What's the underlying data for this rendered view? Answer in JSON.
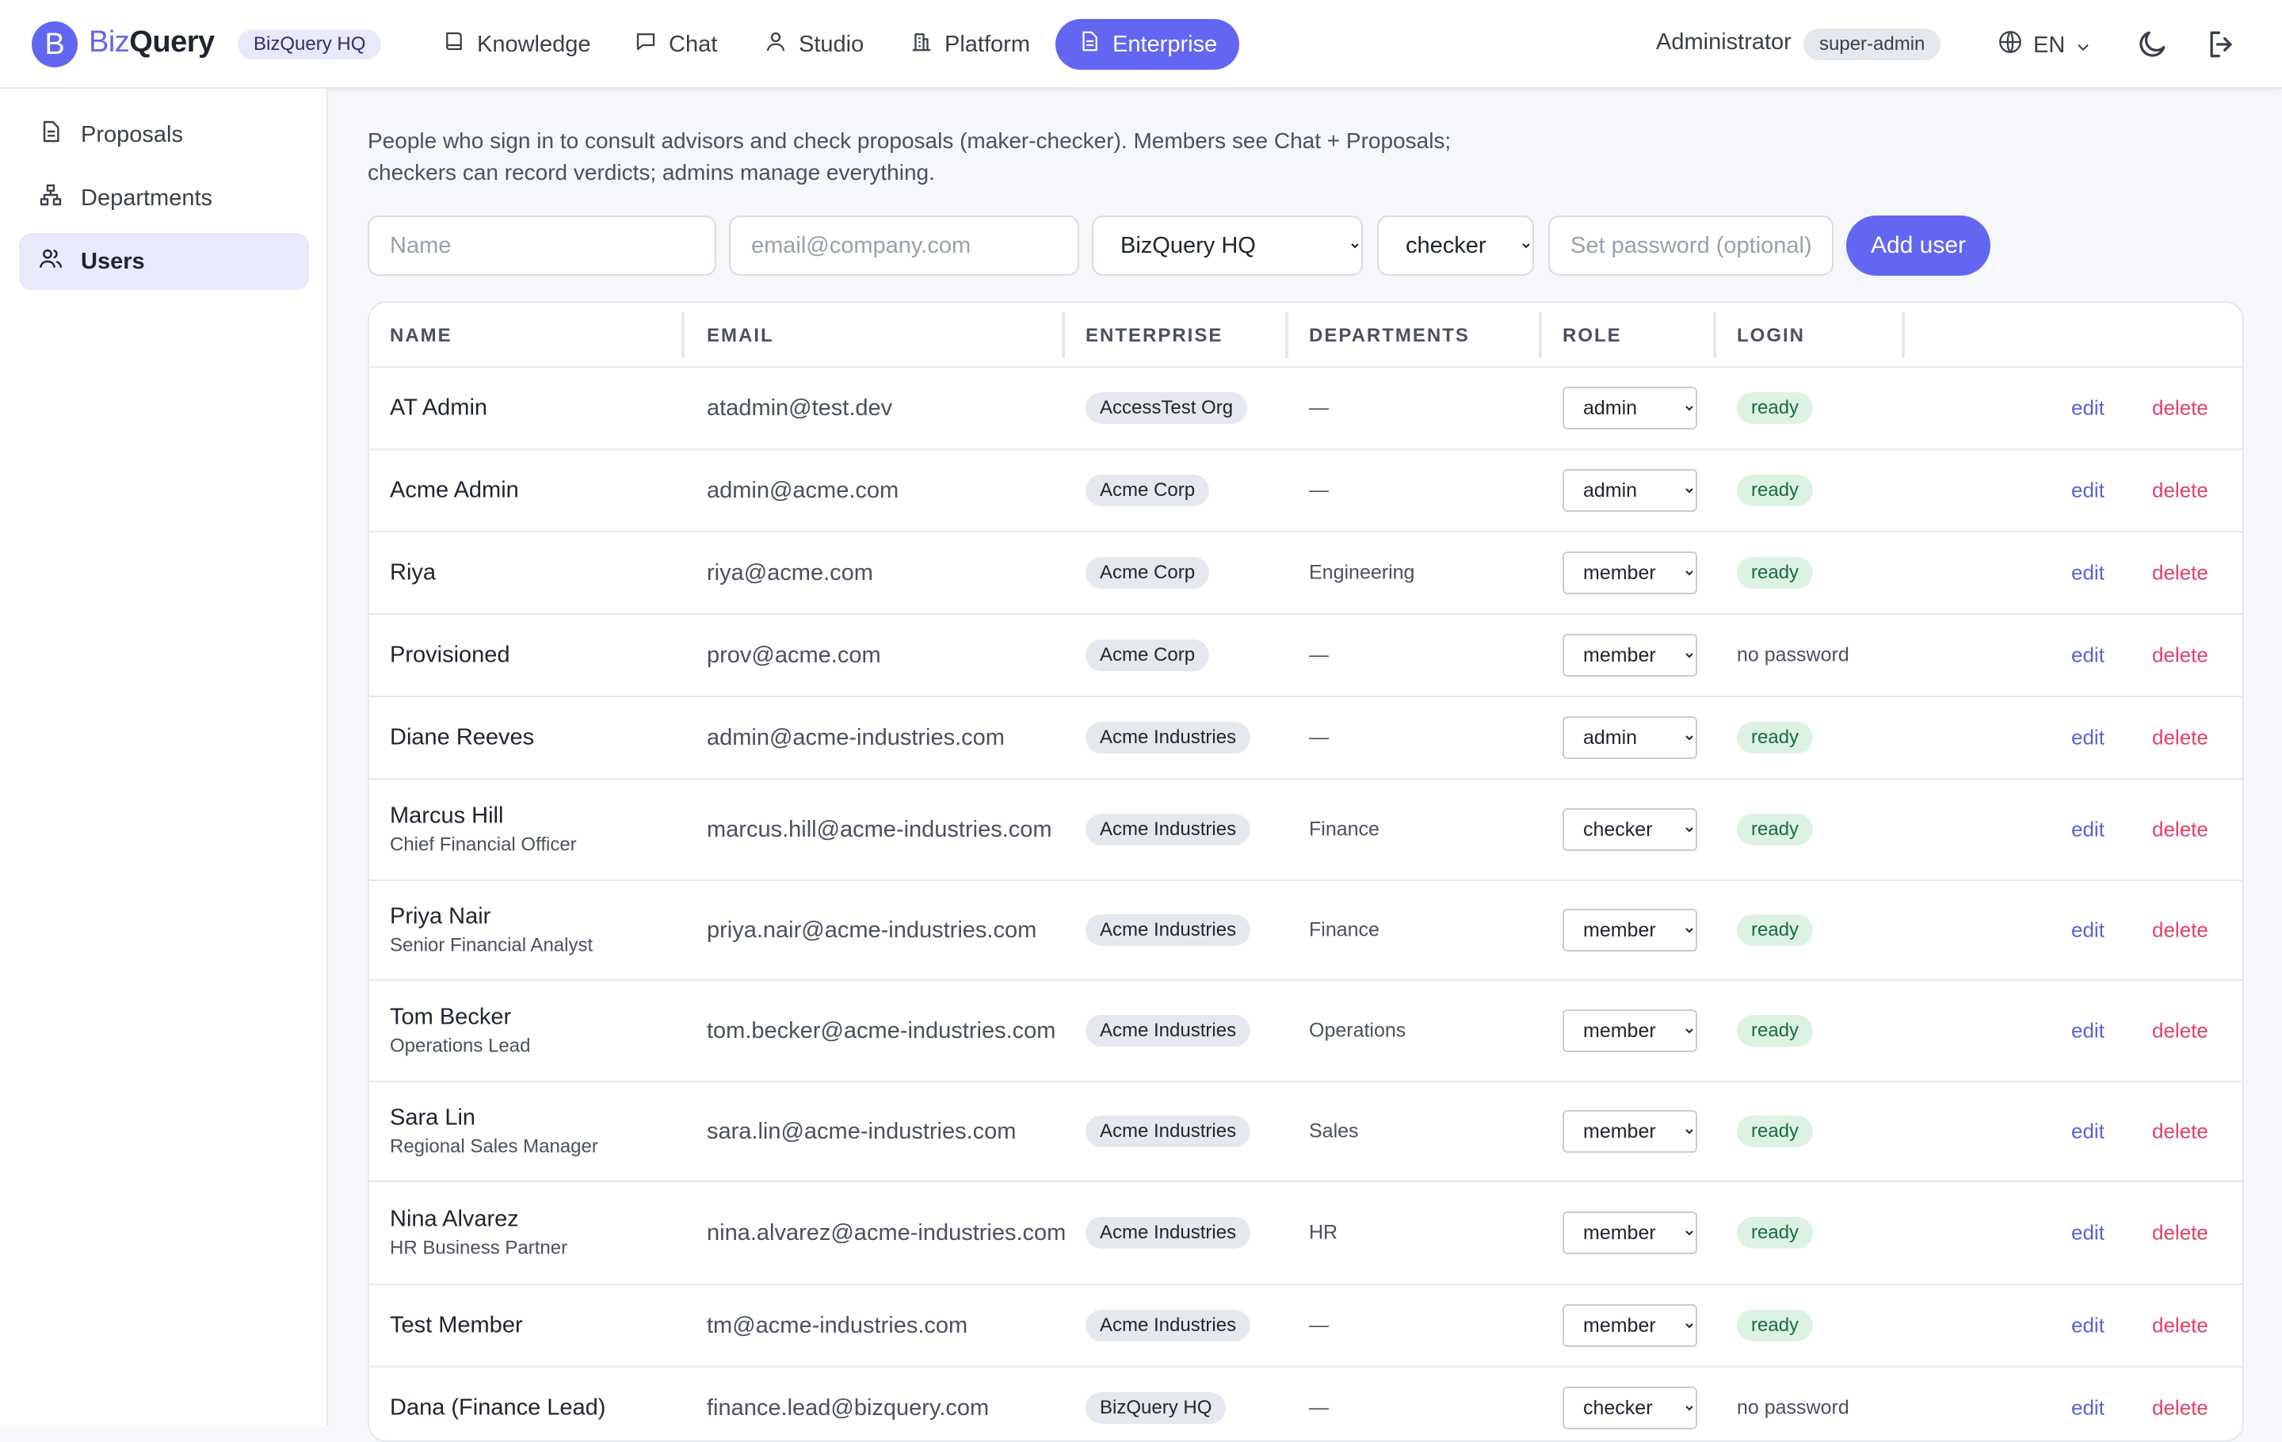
{
  "app": {
    "logo_letter": "B",
    "brand_part1": "Biz",
    "brand_part2": "Query",
    "org_chip": "BizQuery HQ"
  },
  "nav": [
    {
      "label": "Knowledge",
      "icon": "book-icon"
    },
    {
      "label": "Chat",
      "icon": "chat-icon"
    },
    {
      "label": "Studio",
      "icon": "person-icon"
    },
    {
      "label": "Platform",
      "icon": "building-icon"
    },
    {
      "label": "Enterprise",
      "icon": "document-icon",
      "active": true
    }
  ],
  "user": {
    "name": "Administrator",
    "role": "super-admin",
    "language": "EN"
  },
  "sidebar": {
    "items": [
      {
        "label": "Proposals",
        "icon": "document-icon"
      },
      {
        "label": "Departments",
        "icon": "org-chart-icon"
      },
      {
        "label": "Users",
        "icon": "users-icon",
        "active": true
      }
    ]
  },
  "intro": {
    "line1": "People who sign in to consult advisors and check proposals (maker-checker). Members see Chat + Proposals;",
    "line2": "checkers can record verdicts; admins manage everything."
  },
  "form": {
    "name_placeholder": "Name",
    "email_placeholder": "email@company.com",
    "enterprise_value": "BizQuery HQ",
    "role_value": "checker",
    "password_placeholder": "Set password (optional)",
    "add_label": "Add user"
  },
  "table": {
    "headers": [
      "NAME",
      "EMAIL",
      "ENTERPRISE",
      "DEPARTMENTS",
      "ROLE",
      "LOGIN"
    ],
    "edit_label": "edit",
    "delete_label": "delete",
    "rows": [
      {
        "name": "AT Admin",
        "title": "",
        "email": "atadmin@test.dev",
        "enterprise": "AccessTest Org",
        "departments": "—",
        "role": "admin",
        "login": "ready"
      },
      {
        "name": "Acme Admin",
        "title": "",
        "email": "admin@acme.com",
        "enterprise": "Acme Corp",
        "departments": "—",
        "role": "admin",
        "login": "ready"
      },
      {
        "name": "Riya",
        "title": "",
        "email": "riya@acme.com",
        "enterprise": "Acme Corp",
        "departments": "Engineering",
        "role": "member",
        "login": "ready"
      },
      {
        "name": "Provisioned",
        "title": "",
        "email": "prov@acme.com",
        "enterprise": "Acme Corp",
        "departments": "—",
        "role": "member",
        "login": "no password"
      },
      {
        "name": "Diane Reeves",
        "title": "",
        "email": "admin@acme-industries.com",
        "enterprise": "Acme Industries",
        "departments": "—",
        "role": "admin",
        "login": "ready"
      },
      {
        "name": "Marcus Hill",
        "title": "Chief Financial Officer",
        "email": "marcus.hill@acme-industries.com",
        "enterprise": "Acme Industries",
        "departments": "Finance",
        "role": "checker",
        "login": "ready"
      },
      {
        "name": "Priya Nair",
        "title": "Senior Financial Analyst",
        "email": "priya.nair@acme-industries.com",
        "enterprise": "Acme Industries",
        "departments": "Finance",
        "role": "member",
        "login": "ready"
      },
      {
        "name": "Tom Becker",
        "title": "Operations Lead",
        "email": "tom.becker@acme-industries.com",
        "enterprise": "Acme Industries",
        "departments": "Operations",
        "role": "member",
        "login": "ready"
      },
      {
        "name": "Sara Lin",
        "title": "Regional Sales Manager",
        "email": "sara.lin@acme-industries.com",
        "enterprise": "Acme Industries",
        "departments": "Sales",
        "role": "member",
        "login": "ready"
      },
      {
        "name": "Nina Alvarez",
        "title": "HR Business Partner",
        "email": "nina.alvarez@acme-industries.com",
        "enterprise": "Acme Industries",
        "departments": "HR",
        "role": "member",
        "login": "ready"
      },
      {
        "name": "Test Member",
        "title": "",
        "email": "tm@acme-industries.com",
        "enterprise": "Acme Industries",
        "departments": "—",
        "role": "member",
        "login": "ready"
      },
      {
        "name": "Dana (Finance Lead)",
        "title": "",
        "email": "finance.lead@bizquery.com",
        "enterprise": "BizQuery HQ",
        "departments": "—",
        "role": "checker",
        "login": "no password"
      }
    ]
  },
  "colors": {
    "accent": "#6366f1",
    "ready_bg": "#dcf3e4",
    "ready_text": "#1d6a3c",
    "delete": "#e0426b",
    "edit": "#5a63d8"
  }
}
